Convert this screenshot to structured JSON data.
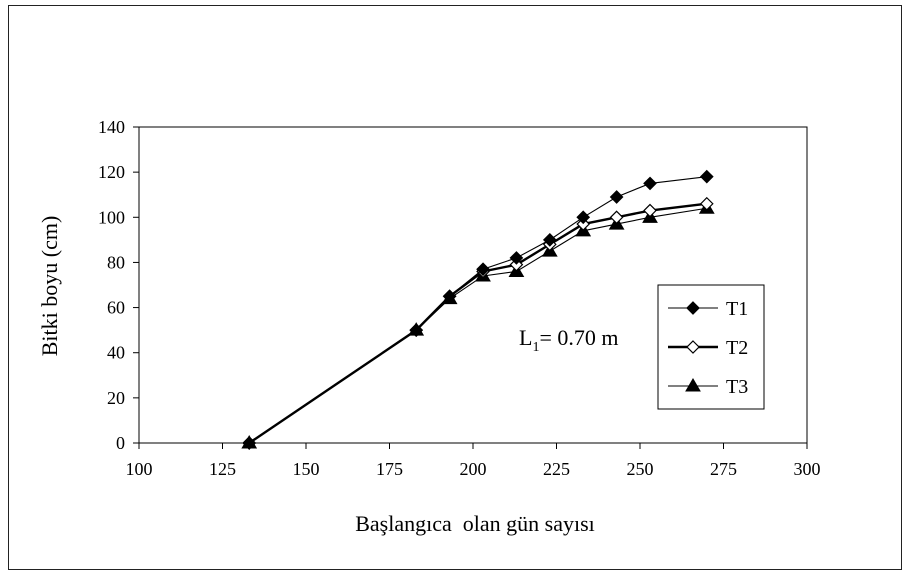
{
  "chart_data": {
    "type": "line",
    "xlabel": "Başlangıca  olan gün sayısı",
    "ylabel": "Bitki boyu (cm)",
    "xlim": [
      100,
      300
    ],
    "ylim": [
      0,
      140
    ],
    "x_ticks": [
      100,
      125,
      150,
      175,
      200,
      225,
      250,
      275,
      300
    ],
    "y_ticks": [
      0,
      20,
      40,
      60,
      80,
      100,
      120,
      140
    ],
    "x_tick_labels": [
      "100",
      "125",
      "150",
      "175",
      "200",
      "225",
      "250",
      "275",
      "300"
    ],
    "y_tick_labels": [
      "0",
      "20",
      "40",
      "60",
      "80",
      "100",
      "120",
      "140"
    ],
    "grid": false,
    "legend_position": "right",
    "annotation": {
      "prefix": "L",
      "subscript": "1",
      "suffix": "= 0.70 m"
    },
    "x": [
      133,
      183,
      193,
      203,
      213,
      223,
      233,
      243,
      253,
      270
    ],
    "series": [
      {
        "name": "T1",
        "marker": "diamond-filled",
        "line": "thin",
        "values": [
          0,
          50,
          65,
          77,
          82,
          90,
          100,
          109,
          115,
          118
        ]
      },
      {
        "name": "T2",
        "marker": "diamond-open",
        "line": "thick",
        "values": [
          0,
          50,
          65,
          76,
          79,
          88,
          97,
          100,
          103,
          106
        ]
      },
      {
        "name": "T3",
        "marker": "triangle-filled",
        "line": "thin",
        "values": [
          0,
          50,
          64,
          74,
          76,
          85,
          94,
          97,
          100,
          104
        ]
      }
    ]
  }
}
